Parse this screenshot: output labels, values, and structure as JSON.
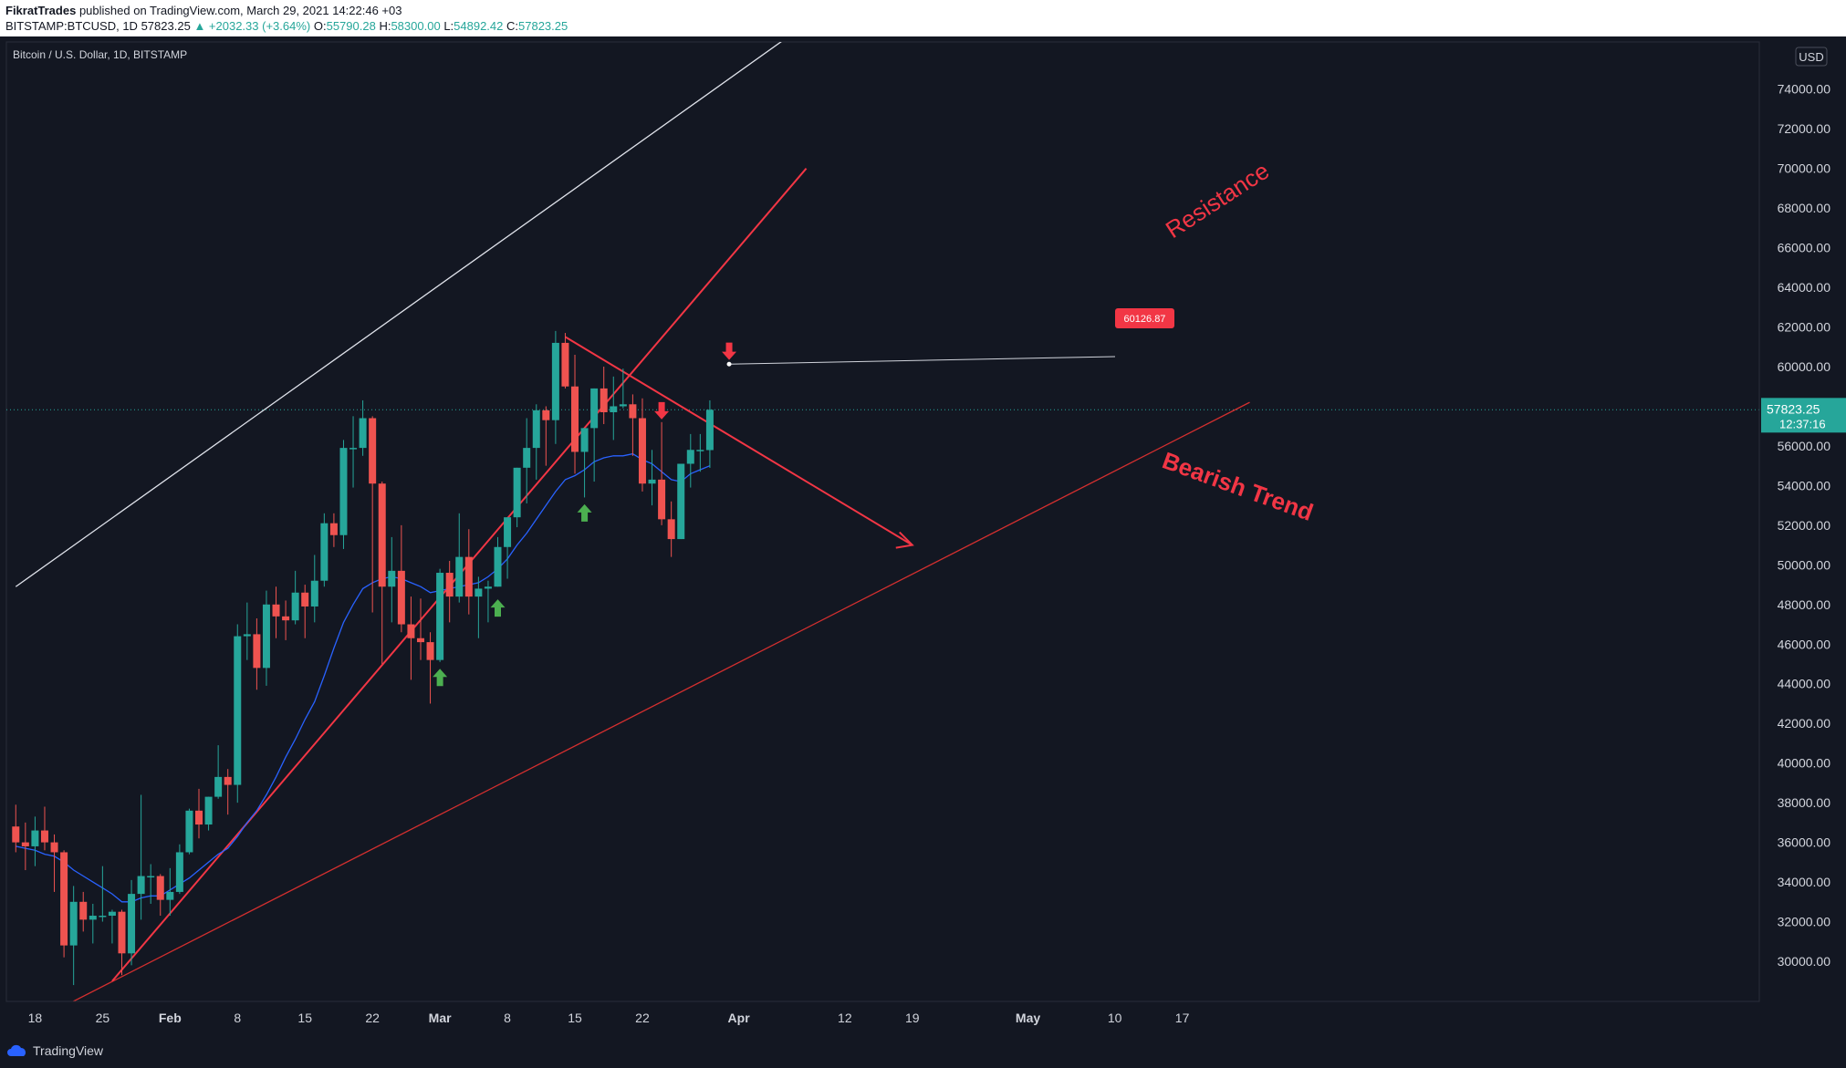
{
  "header": {
    "author": "FikratTrades",
    "published": "published on TradingView.com, March 29, 2021 14:22:46 +03",
    "symbol": "BITSTAMP:BTCUSD, 1D",
    "last": "57823.25",
    "change": "▲ +2032.33 (+3.64%)",
    "ohlc": {
      "o_label": "O:",
      "o": "55790.28",
      "h_label": "H:",
      "h": "58300.00",
      "l_label": "L:",
      "l": "54892.42",
      "c_label": "C:",
      "c": "57823.25"
    }
  },
  "chart_title": "Bitcoin / U.S. Dollar, 1D, BITSTAMP",
  "currency_label": "USD",
  "footer": {
    "brand": "TradingView"
  },
  "colors": {
    "bg": "#131722",
    "up": "#26a69a",
    "down": "#ef5350",
    "ma": "#2962ff",
    "trend": "#f23645",
    "white": "#ffffff",
    "arrow_up": "#4caf50"
  },
  "chart_data": {
    "type": "candlestick",
    "y_ticks": [
      30000,
      32000,
      34000,
      36000,
      38000,
      40000,
      42000,
      44000,
      46000,
      48000,
      50000,
      52000,
      54000,
      56000,
      58000,
      60000,
      62000,
      64000,
      66000,
      68000,
      70000,
      72000,
      74000
    ],
    "y_tick_labels": [
      "30000.00",
      "32000.00",
      "34000.00",
      "36000.00",
      "38000.00",
      "40000.00",
      "42000.00",
      "44000.00",
      "46000.00",
      "48000.00",
      "50000.00",
      "52000.00",
      "54000.00",
      "56000.00",
      "58000.00",
      "60000.00",
      "62000.00",
      "64000.00",
      "66000.00",
      "68000.00",
      "70000.00",
      "72000.00",
      "74000.00"
    ],
    "x_ticks": [
      {
        "label": "18",
        "date": "2021-01-18"
      },
      {
        "label": "25",
        "date": "2021-01-25"
      },
      {
        "label": "Feb",
        "date": "2021-02-01"
      },
      {
        "label": "8",
        "date": "2021-02-08"
      },
      {
        "label": "15",
        "date": "2021-02-15"
      },
      {
        "label": "22",
        "date": "2021-02-22"
      },
      {
        "label": "Mar",
        "date": "2021-03-01"
      },
      {
        "label": "8",
        "date": "2021-03-08"
      },
      {
        "label": "15",
        "date": "2021-03-15"
      },
      {
        "label": "22",
        "date": "2021-03-22"
      },
      {
        "label": "Apr",
        "date": "2021-04-01"
      },
      {
        "label": "12",
        "date": "2021-04-12"
      },
      {
        "label": "19",
        "date": "2021-04-19"
      },
      {
        "label": "May",
        "date": "2021-05-01"
      },
      {
        "label": "10",
        "date": "2021-05-10"
      },
      {
        "label": "17",
        "date": "2021-05-17"
      }
    ],
    "candles": [
      {
        "d": "2021-01-16",
        "o": 36800,
        "h": 37900,
        "l": 35500,
        "c": 36000
      },
      {
        "d": "2021-01-17",
        "o": 36000,
        "h": 37000,
        "l": 34600,
        "c": 35800
      },
      {
        "d": "2021-01-18",
        "o": 35800,
        "h": 37300,
        "l": 34800,
        "c": 36600
      },
      {
        "d": "2021-01-19",
        "o": 36600,
        "h": 37800,
        "l": 35600,
        "c": 36000
      },
      {
        "d": "2021-01-20",
        "o": 36000,
        "h": 36400,
        "l": 33500,
        "c": 35500
      },
      {
        "d": "2021-01-21",
        "o": 35500,
        "h": 35600,
        "l": 30200,
        "c": 30800
      },
      {
        "d": "2021-01-22",
        "o": 30800,
        "h": 33800,
        "l": 28800,
        "c": 33000
      },
      {
        "d": "2021-01-23",
        "o": 33000,
        "h": 33500,
        "l": 31500,
        "c": 32100
      },
      {
        "d": "2021-01-24",
        "o": 32100,
        "h": 32900,
        "l": 30900,
        "c": 32300
      },
      {
        "d": "2021-01-25",
        "o": 32300,
        "h": 34800,
        "l": 32000,
        "c": 32300
      },
      {
        "d": "2021-01-26",
        "o": 32300,
        "h": 32600,
        "l": 30900,
        "c": 32500
      },
      {
        "d": "2021-01-27",
        "o": 32500,
        "h": 32600,
        "l": 29300,
        "c": 30400
      },
      {
        "d": "2021-01-28",
        "o": 30400,
        "h": 34100,
        "l": 29800,
        "c": 33400
      },
      {
        "d": "2021-01-29",
        "o": 33400,
        "h": 38400,
        "l": 32100,
        "c": 34300
      },
      {
        "d": "2021-01-30",
        "o": 34300,
        "h": 34900,
        "l": 32900,
        "c": 34300
      },
      {
        "d": "2021-01-31",
        "o": 34300,
        "h": 34400,
        "l": 32300,
        "c": 33100
      },
      {
        "d": "2021-02-01",
        "o": 33100,
        "h": 34700,
        "l": 32300,
        "c": 33500
      },
      {
        "d": "2021-02-02",
        "o": 33500,
        "h": 35900,
        "l": 33400,
        "c": 35500
      },
      {
        "d": "2021-02-03",
        "o": 35500,
        "h": 37700,
        "l": 35400,
        "c": 37600
      },
      {
        "d": "2021-02-04",
        "o": 37600,
        "h": 38700,
        "l": 36200,
        "c": 36900
      },
      {
        "d": "2021-02-05",
        "o": 36900,
        "h": 38300,
        "l": 36600,
        "c": 38300
      },
      {
        "d": "2021-02-06",
        "o": 38300,
        "h": 40900,
        "l": 38200,
        "c": 39300
      },
      {
        "d": "2021-02-07",
        "o": 39300,
        "h": 39700,
        "l": 37400,
        "c": 38900
      },
      {
        "d": "2021-02-08",
        "o": 38900,
        "h": 47000,
        "l": 38000,
        "c": 46400
      },
      {
        "d": "2021-02-09",
        "o": 46400,
        "h": 48100,
        "l": 45200,
        "c": 46500
      },
      {
        "d": "2021-02-10",
        "o": 46500,
        "h": 47300,
        "l": 43700,
        "c": 44800
      },
      {
        "d": "2021-02-11",
        "o": 44800,
        "h": 48700,
        "l": 43900,
        "c": 48000
      },
      {
        "d": "2021-02-12",
        "o": 48000,
        "h": 48900,
        "l": 46300,
        "c": 47400
      },
      {
        "d": "2021-02-13",
        "o": 47400,
        "h": 48200,
        "l": 46200,
        "c": 47200
      },
      {
        "d": "2021-02-14",
        "o": 47200,
        "h": 49700,
        "l": 47000,
        "c": 48600
      },
      {
        "d": "2021-02-15",
        "o": 48600,
        "h": 49000,
        "l": 46300,
        "c": 47900
      },
      {
        "d": "2021-02-16",
        "o": 47900,
        "h": 50500,
        "l": 47100,
        "c": 49200
      },
      {
        "d": "2021-02-17",
        "o": 49200,
        "h": 52600,
        "l": 48900,
        "c": 52100
      },
      {
        "d": "2021-02-18",
        "o": 52100,
        "h": 52600,
        "l": 50900,
        "c": 51500
      },
      {
        "d": "2021-02-19",
        "o": 51500,
        "h": 56300,
        "l": 50800,
        "c": 55900
      },
      {
        "d": "2021-02-20",
        "o": 55900,
        "h": 57500,
        "l": 53900,
        "c": 55900
      },
      {
        "d": "2021-02-21",
        "o": 55900,
        "h": 58300,
        "l": 55500,
        "c": 57400
      },
      {
        "d": "2021-02-22",
        "o": 57400,
        "h": 57500,
        "l": 47600,
        "c": 54100
      },
      {
        "d": "2021-02-23",
        "o": 54100,
        "h": 54200,
        "l": 45000,
        "c": 48900
      },
      {
        "d": "2021-02-24",
        "o": 48900,
        "h": 51400,
        "l": 47100,
        "c": 49700
      },
      {
        "d": "2021-02-25",
        "o": 49700,
        "h": 52000,
        "l": 46600,
        "c": 47000
      },
      {
        "d": "2021-02-26",
        "o": 47000,
        "h": 48400,
        "l": 44200,
        "c": 46300
      },
      {
        "d": "2021-02-27",
        "o": 46300,
        "h": 48300,
        "l": 45200,
        "c": 46100
      },
      {
        "d": "2021-02-28",
        "o": 46100,
        "h": 46600,
        "l": 43000,
        "c": 45200
      },
      {
        "d": "2021-03-01",
        "o": 45200,
        "h": 49800,
        "l": 45100,
        "c": 49600
      },
      {
        "d": "2021-03-02",
        "o": 49600,
        "h": 50200,
        "l": 47100,
        "c": 48400
      },
      {
        "d": "2021-03-03",
        "o": 48400,
        "h": 52600,
        "l": 48100,
        "c": 50400
      },
      {
        "d": "2021-03-04",
        "o": 50400,
        "h": 51800,
        "l": 47500,
        "c": 48400
      },
      {
        "d": "2021-03-05",
        "o": 48400,
        "h": 49400,
        "l": 46300,
        "c": 48800
      },
      {
        "d": "2021-03-06",
        "o": 48800,
        "h": 49200,
        "l": 47100,
        "c": 48900
      },
      {
        "d": "2021-03-07",
        "o": 48900,
        "h": 51400,
        "l": 48900,
        "c": 50900
      },
      {
        "d": "2021-03-08",
        "o": 50900,
        "h": 52400,
        "l": 49300,
        "c": 52400
      },
      {
        "d": "2021-03-09",
        "o": 52400,
        "h": 54900,
        "l": 51900,
        "c": 54900
      },
      {
        "d": "2021-03-10",
        "o": 54900,
        "h": 57400,
        "l": 53100,
        "c": 55900
      },
      {
        "d": "2021-03-11",
        "o": 55900,
        "h": 58100,
        "l": 54300,
        "c": 57800
      },
      {
        "d": "2021-03-12",
        "o": 57800,
        "h": 58000,
        "l": 55000,
        "c": 57300
      },
      {
        "d": "2021-03-13",
        "o": 57300,
        "h": 61800,
        "l": 56100,
        "c": 61200
      },
      {
        "d": "2021-03-14",
        "o": 61200,
        "h": 61700,
        "l": 58900,
        "c": 59000
      },
      {
        "d": "2021-03-15",
        "o": 59000,
        "h": 60600,
        "l": 54600,
        "c": 55700
      },
      {
        "d": "2021-03-16",
        "o": 55700,
        "h": 56900,
        "l": 53400,
        "c": 56900
      },
      {
        "d": "2021-03-17",
        "o": 56900,
        "h": 58900,
        "l": 54200,
        "c": 58900
      },
      {
        "d": "2021-03-18",
        "o": 58900,
        "h": 60000,
        "l": 57100,
        "c": 57700
      },
      {
        "d": "2021-03-19",
        "o": 57700,
        "h": 59500,
        "l": 56300,
        "c": 58000
      },
      {
        "d": "2021-03-20",
        "o": 58000,
        "h": 59900,
        "l": 57900,
        "c": 58100
      },
      {
        "d": "2021-03-21",
        "o": 58100,
        "h": 58600,
        "l": 55500,
        "c": 57400
      },
      {
        "d": "2021-03-22",
        "o": 57400,
        "h": 58400,
        "l": 53700,
        "c": 54100
      },
      {
        "d": "2021-03-23",
        "o": 54100,
        "h": 55800,
        "l": 53000,
        "c": 54300
      },
      {
        "d": "2021-03-24",
        "o": 54300,
        "h": 57200,
        "l": 52000,
        "c": 52300
      },
      {
        "d": "2021-03-25",
        "o": 52300,
        "h": 53200,
        "l": 50400,
        "c": 51300
      },
      {
        "d": "2021-03-26",
        "o": 51300,
        "h": 55100,
        "l": 51300,
        "c": 55100
      },
      {
        "d": "2021-03-27",
        "o": 55100,
        "h": 56600,
        "l": 53900,
        "c": 55800
      },
      {
        "d": "2021-03-28",
        "o": 55800,
        "h": 56600,
        "l": 54700,
        "c": 55800
      },
      {
        "d": "2021-03-29",
        "o": 55790.28,
        "h": 58300,
        "l": 54892.42,
        "c": 57823.25
      }
    ],
    "ma": [
      35800,
      35700,
      35600,
      35400,
      35300,
      35000,
      34600,
      34300,
      34000,
      33700,
      33400,
      33000,
      33000,
      33200,
      33300,
      33300,
      33600,
      33900,
      34200,
      34600,
      35000,
      35400,
      35700,
      36300,
      37000,
      37600,
      38400,
      39300,
      40300,
      41200,
      42200,
      43100,
      44400,
      45800,
      47100,
      48000,
      48800,
      49100,
      49300,
      49400,
      49300,
      49100,
      48900,
      48600,
      48700,
      48800,
      48900,
      49000,
      49100,
      49400,
      49800,
      50300,
      51000,
      51600,
      52300,
      53000,
      53700,
      54300,
      54500,
      54800,
      55200,
      55400,
      55500,
      55500,
      55600,
      55300,
      55100,
      54700,
      54300,
      54200,
      54600,
      54800,
      55000
    ],
    "drawings": {
      "white_channel": [
        {
          "d": "2021-01-16",
          "p": 48900
        },
        {
          "d": "2021-04-06",
          "p": 76600
        }
      ],
      "support_red": [
        {
          "d": "2021-01-26",
          "p": 29000
        },
        {
          "d": "2021-04-08",
          "p": 70000
        }
      ],
      "bearish_red": [
        {
          "d": "2021-03-14",
          "p": 61500
        },
        {
          "d": "2021-04-19",
          "p": 51000
        }
      ],
      "lower_red": [
        {
          "d": "2021-01-16",
          "p": 26500
        },
        {
          "d": "2021-05-24",
          "p": 58200
        }
      ],
      "callout_price": "60126.87",
      "price_tag": "57823.25",
      "countdown": "12:37:16"
    },
    "annotations": [
      {
        "text": "Resistance",
        "kind": "label"
      },
      {
        "text": "Bearish Trend",
        "kind": "label"
      }
    ],
    "markers": [
      {
        "d": "2021-03-01",
        "p": 44300,
        "dir": "up"
      },
      {
        "d": "2021-03-07",
        "p": 47800,
        "dir": "up"
      },
      {
        "d": "2021-03-16",
        "p": 52600,
        "dir": "up"
      },
      {
        "d": "2021-03-24",
        "p": 57800,
        "dir": "down"
      },
      {
        "d": "2021-03-31",
        "p": 60800,
        "dir": "down"
      }
    ]
  }
}
